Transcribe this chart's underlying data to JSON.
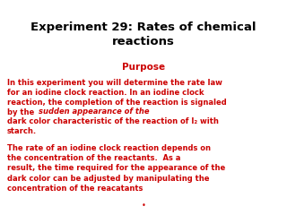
{
  "title": "Experiment 29: Rates of chemical\nreactions",
  "title_color": "#000000",
  "title_fontsize": 9.5,
  "purpose_label": "Purpose",
  "purpose_color": "#cc0000",
  "purpose_fontsize": 7.5,
  "body_color": "#cc0000",
  "body_fontsize": 6.0,
  "background_color": "#ffffff",
  "p1a": "In this experiment you will determine the rate law\nfor an iodine clock reaction. In an iodine clock\nreaction, the completion of the reaction is signaled\nby the ",
  "p1_italic": "sudden appearance of the",
  "p1b": "dark color characteristic of the reaction of I₂ with\nstarch.",
  "p2": "The rate of an iodine clock reaction depends on\nthe concentration of the reactants.  As a\nresult, the time required for the appearance of the\ndark color can be adjusted by manipulating the\nconcentration of the reacatants"
}
